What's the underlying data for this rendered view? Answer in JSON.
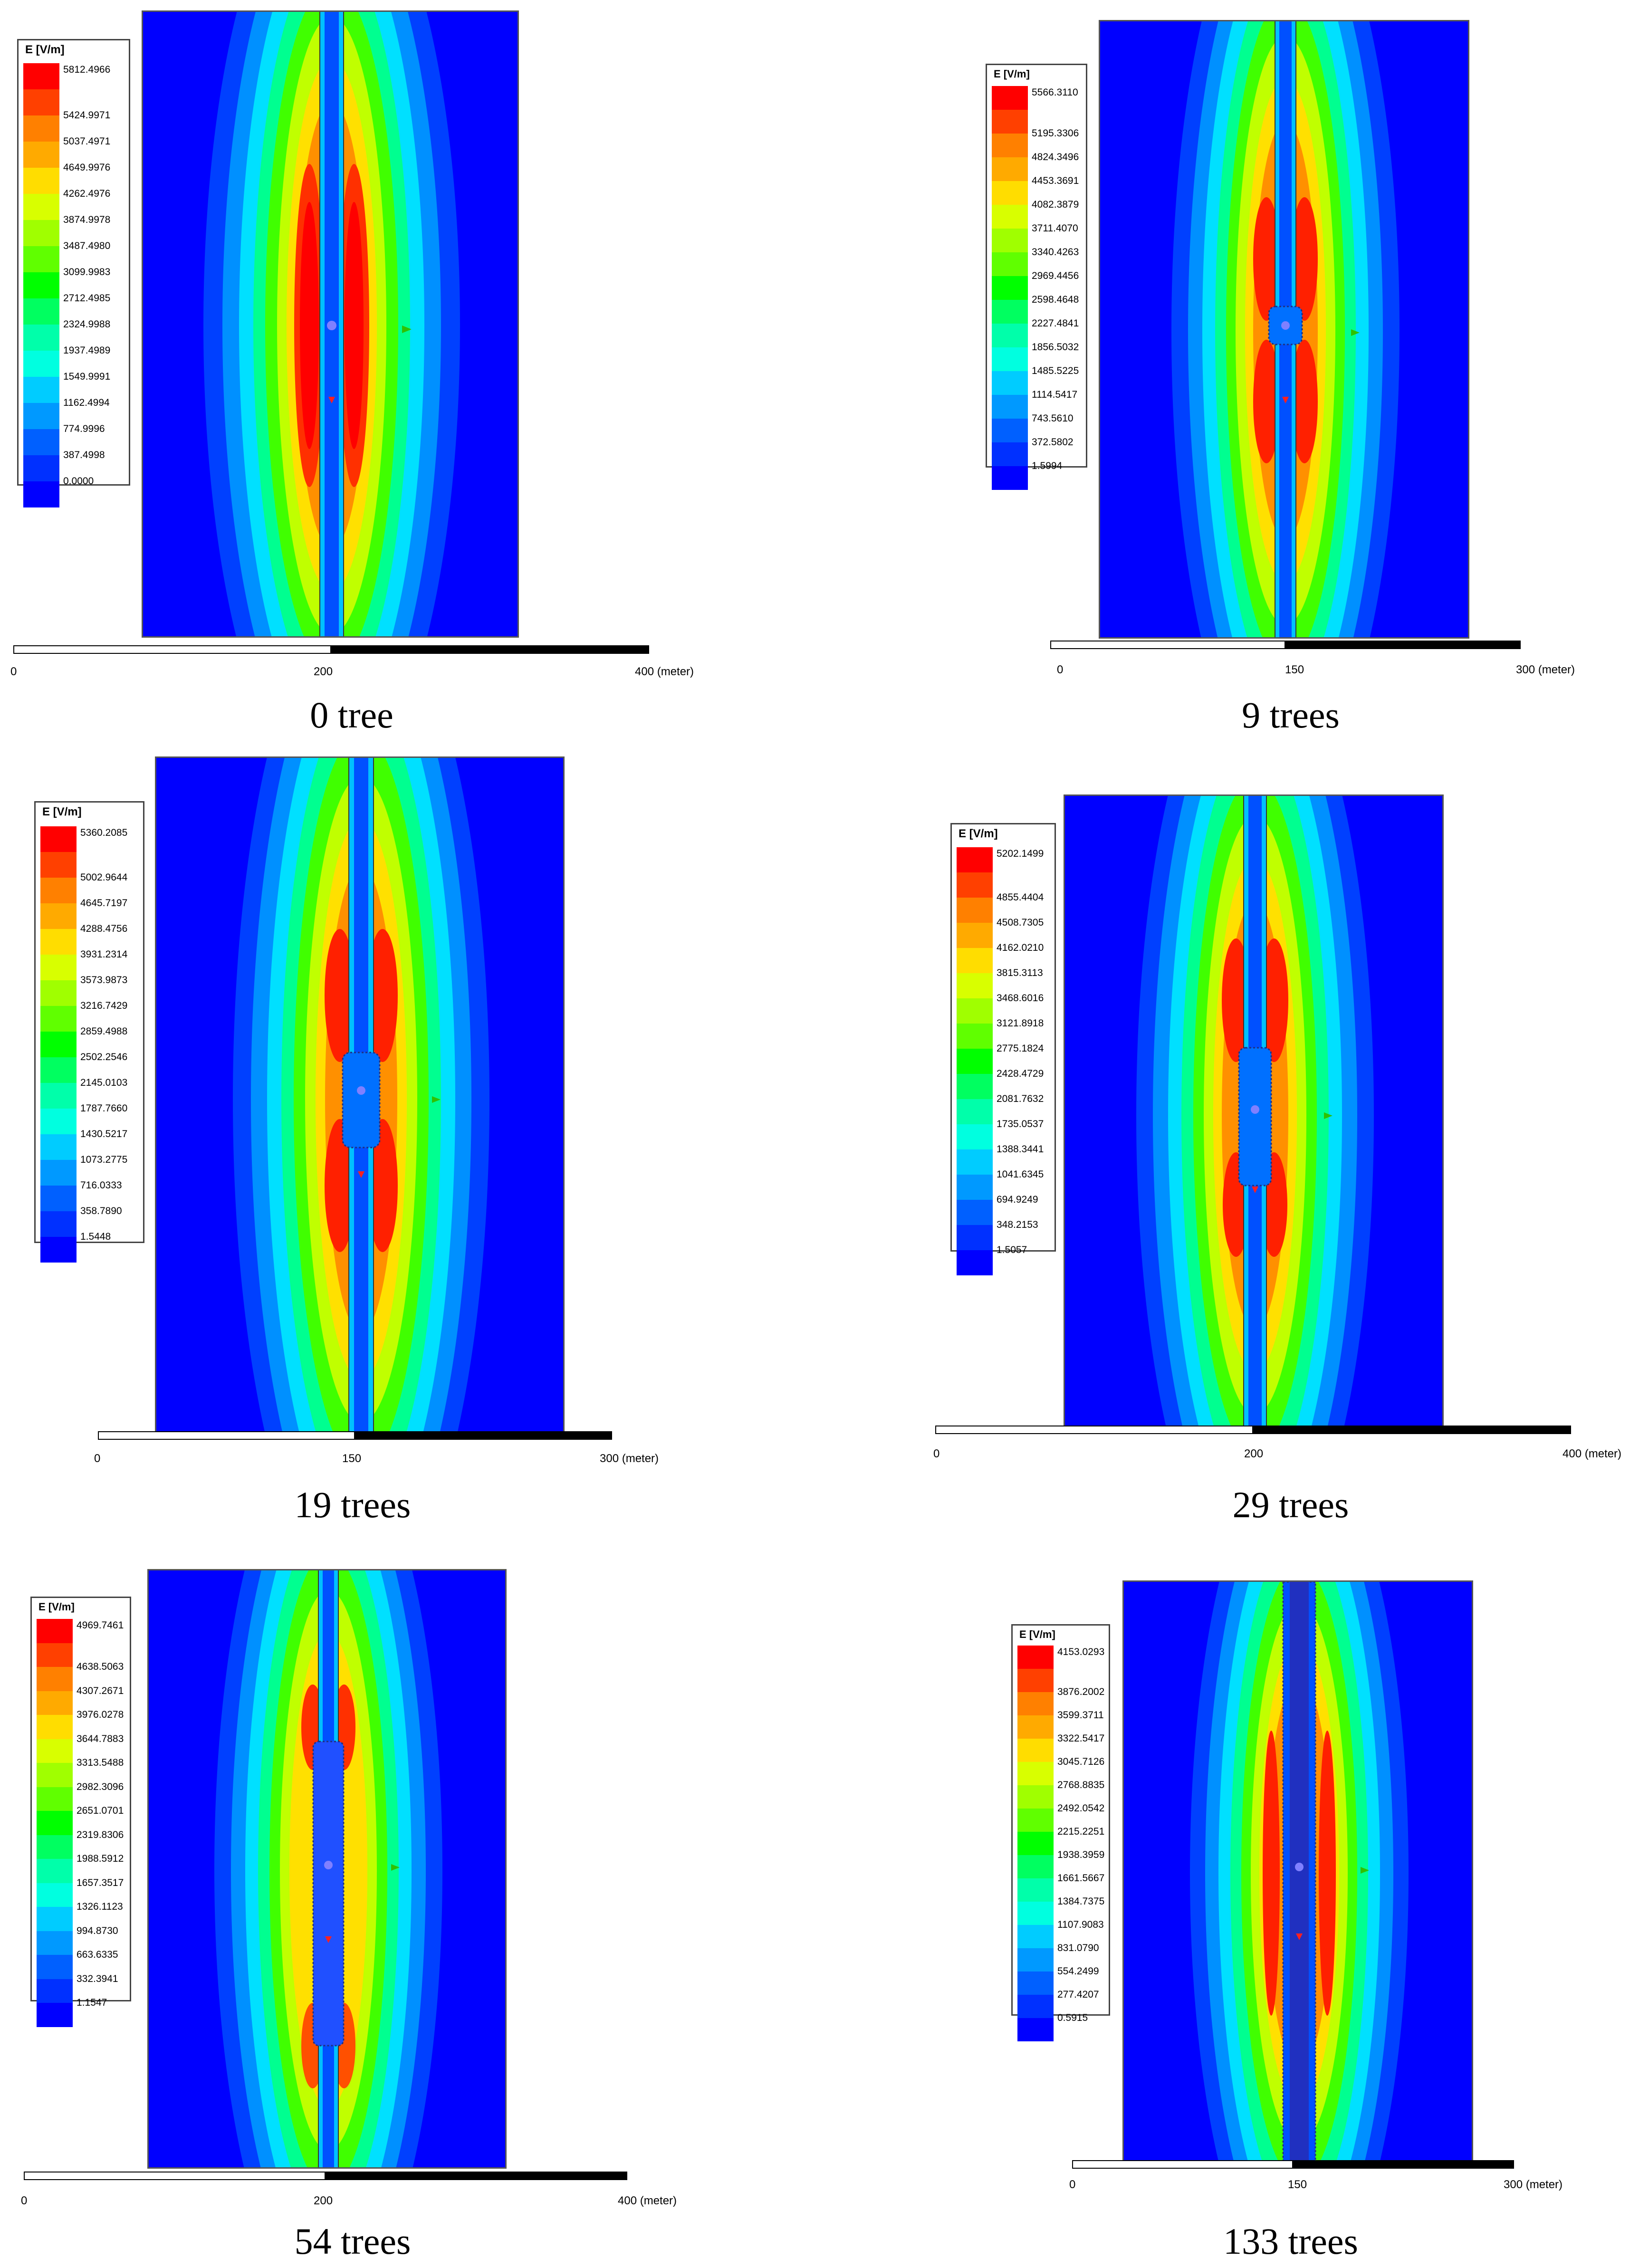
{
  "legend_title": "E [V/m]",
  "colors": {
    "bands": [
      "#ff0000",
      "#ff4000",
      "#ff8000",
      "#ffaa00",
      "#ffdd00",
      "#d8ff00",
      "#a0ff00",
      "#60ff00",
      "#00ff00",
      "#00ff60",
      "#00ffaa",
      "#00ffe0",
      "#00ccff",
      "#0099ff",
      "#0060ff",
      "#0030ff",
      "#0000ff"
    ],
    "background_field": "#0000ff",
    "marker_green": "#30c000",
    "marker_red": "#ff2020"
  },
  "panels": [
    {
      "caption": "0 tree",
      "legend_values": [
        "5812.4966",
        "5424.9971",
        "5037.4971",
        "4649.9976",
        "4262.4976",
        "3874.9978",
        "3487.4980",
        "3099.9983",
        "2712.4985",
        "2324.9988",
        "1937.4989",
        "1549.9991",
        "1162.4994",
        "774.9996",
        "387.4998",
        "0.0000"
      ],
      "scale_ticks": [
        "0",
        "200",
        "400 (meter)"
      ]
    },
    {
      "caption": "9 trees",
      "legend_values": [
        "5566.3110",
        "5195.3306",
        "4824.3496",
        "4453.3691",
        "4082.3879",
        "3711.4070",
        "3340.4263",
        "2969.4456",
        "2598.4648",
        "2227.4841",
        "1856.5032",
        "1485.5225",
        "1114.5417",
        "743.5610",
        "372.5802",
        "1.5994"
      ],
      "scale_ticks": [
        "0",
        "150",
        "300 (meter)"
      ]
    },
    {
      "caption": "19 trees",
      "legend_values": [
        "5360.2085",
        "5002.9644",
        "4645.7197",
        "4288.4756",
        "3931.2314",
        "3573.9873",
        "3216.7429",
        "2859.4988",
        "2502.2546",
        "2145.0103",
        "1787.7660",
        "1430.5217",
        "1073.2775",
        "716.0333",
        "358.7890",
        "1.5448"
      ],
      "scale_ticks": [
        "0",
        "150",
        "300 (meter)"
      ]
    },
    {
      "caption": "29 trees",
      "legend_values": [
        "5202.1499",
        "4855.4404",
        "4508.7305",
        "4162.0210",
        "3815.3113",
        "3468.6016",
        "3121.8918",
        "2775.1824",
        "2428.4729",
        "2081.7632",
        "1735.0537",
        "1388.3441",
        "1041.6345",
        "694.9249",
        "348.2153",
        "1.5057"
      ],
      "scale_ticks": [
        "0",
        "200",
        "400 (meter)"
      ]
    },
    {
      "caption": "54 trees",
      "legend_values": [
        "4969.7461",
        "4638.5063",
        "4307.2671",
        "3976.0278",
        "3644.7883",
        "3313.5488",
        "2982.3096",
        "2651.0701",
        "2319.8306",
        "1988.5912",
        "1657.3517",
        "1326.1123",
        "994.8730",
        "663.6335",
        "332.3941",
        "1.1547"
      ],
      "scale_ticks": [
        "0",
        "200",
        "400 (meter)"
      ]
    },
    {
      "caption": "133 trees",
      "legend_values": [
        "4153.0293",
        "3876.2002",
        "3599.3711",
        "3322.5417",
        "3045.7126",
        "2768.8835",
        "2492.0542",
        "2215.2251",
        "1938.3959",
        "1661.5667",
        "1384.7375",
        "1107.9083",
        "831.0790",
        "554.2499",
        "277.4207",
        "0.5915"
      ],
      "scale_ticks": [
        "0",
        "150",
        "300 (meter)"
      ]
    }
  ]
}
